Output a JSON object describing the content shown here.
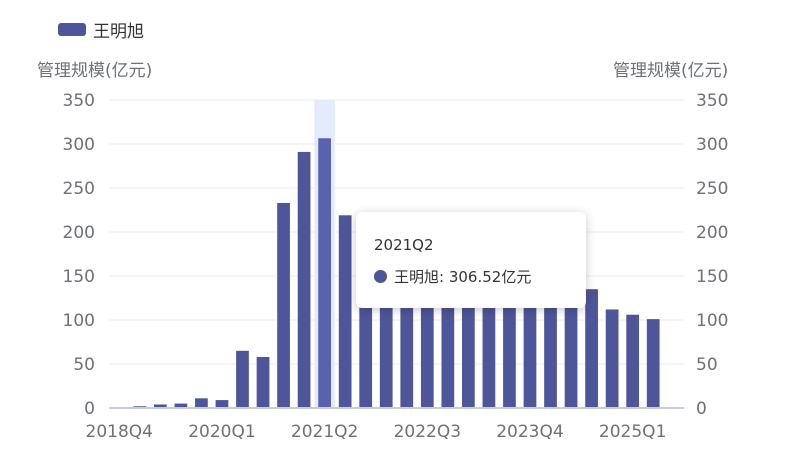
{
  "legend": {
    "label": "王明旭",
    "color": "#4e5699"
  },
  "axes": {
    "left_name": "管理规模(亿元)",
    "right_name": "管理规模(亿元)"
  },
  "tooltip": {
    "title": "2021Q2",
    "name": "王明旭",
    "sep": ": ",
    "value": "306.52亿元"
  },
  "colors": {
    "bar": "#4e5699",
    "highlight_bar": "#5a62ad",
    "highlight_bg": "#e4ebfb",
    "axis_text": "#6e7079",
    "grid": "#e8ebf3"
  },
  "chart_data": {
    "type": "bar",
    "categories": [
      "2018Q4",
      "2019Q1",
      "2019Q2",
      "2019Q3",
      "2019Q4",
      "2020Q1",
      "2020Q2",
      "2020Q3",
      "2020Q4",
      "2021Q1",
      "2021Q2",
      "2021Q3",
      "2021Q4",
      "2022Q1",
      "2022Q2",
      "2022Q3",
      "2022Q4",
      "2023Q1",
      "2023Q2",
      "2023Q3",
      "2023Q4",
      "2024Q1",
      "2024Q2",
      "2024Q3",
      "2024Q4",
      "2025Q1",
      "2025Q2",
      "2025Q3"
    ],
    "x_tick_labels": [
      "2018Q4",
      "2020Q1",
      "2021Q2",
      "2022Q3",
      "2023Q4",
      "2025Q1"
    ],
    "series": [
      {
        "name": "王明旭",
        "values": [
          1,
          2,
          4,
          5,
          11,
          9,
          65,
          58,
          233,
          291,
          306.52,
          219,
          197,
          184,
          170,
          158,
          148,
          140,
          135,
          131,
          119,
          124,
          123,
          135,
          112,
          106,
          101,
          null
        ]
      }
    ],
    "ylim": [
      0,
      350
    ],
    "yticks": [
      0,
      50,
      100,
      150,
      200,
      250,
      300,
      350
    ],
    "y_tick_labels": [
      "0",
      "50",
      "100",
      "150",
      "200",
      "250",
      "300",
      "350"
    ],
    "highlight_index": 10,
    "grid": true,
    "legend_position": "top-left"
  }
}
